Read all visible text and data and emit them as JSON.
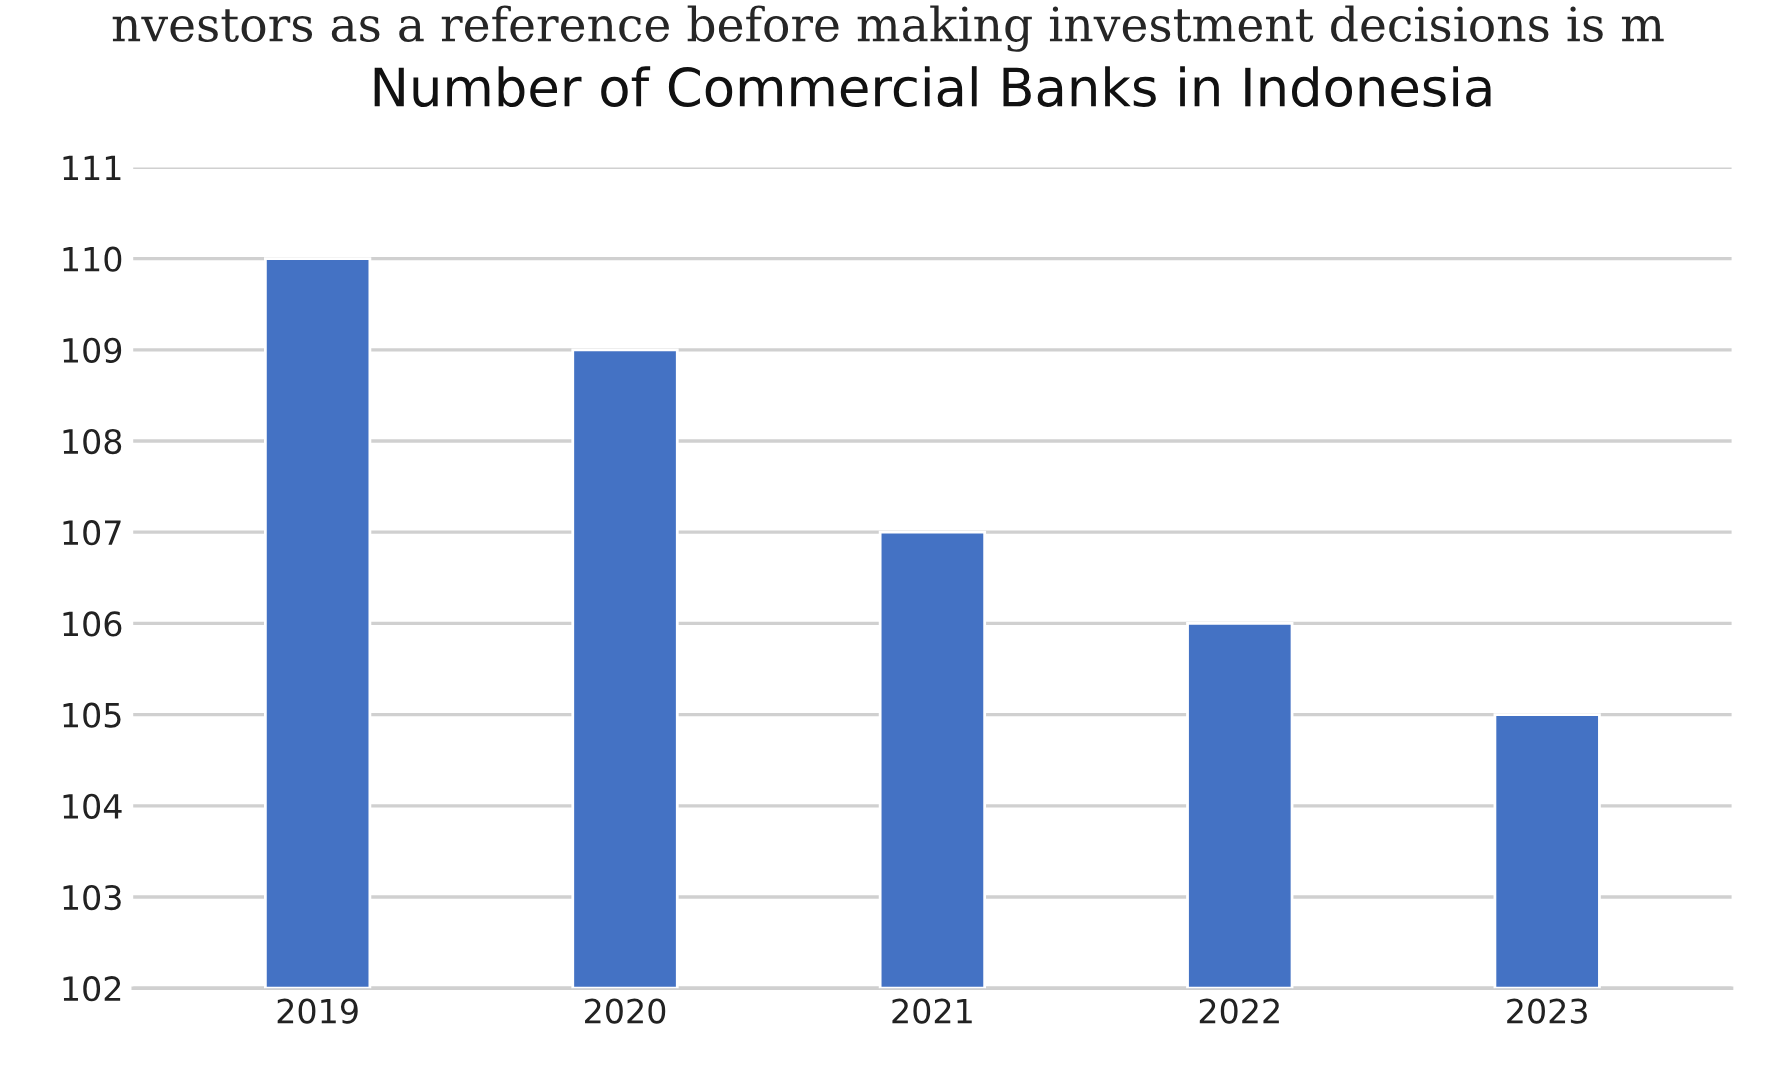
{
  "chart_data": {
    "type": "bar",
    "title": "Number of Commercial Banks in Indonesia",
    "annotations": [
      "nvestors as a reference before making investment decisions is m"
    ],
    "categories": [
      "2019",
      "2020",
      "2021",
      "2022",
      "2023"
    ],
    "values": [
      110,
      109,
      107,
      106,
      105
    ],
    "color": "#4472c4",
    "ylim": [
      102,
      111
    ],
    "yticks": [
      102,
      103,
      104,
      105,
      106,
      107,
      108,
      109,
      110,
      111
    ],
    "grid": "y"
  }
}
